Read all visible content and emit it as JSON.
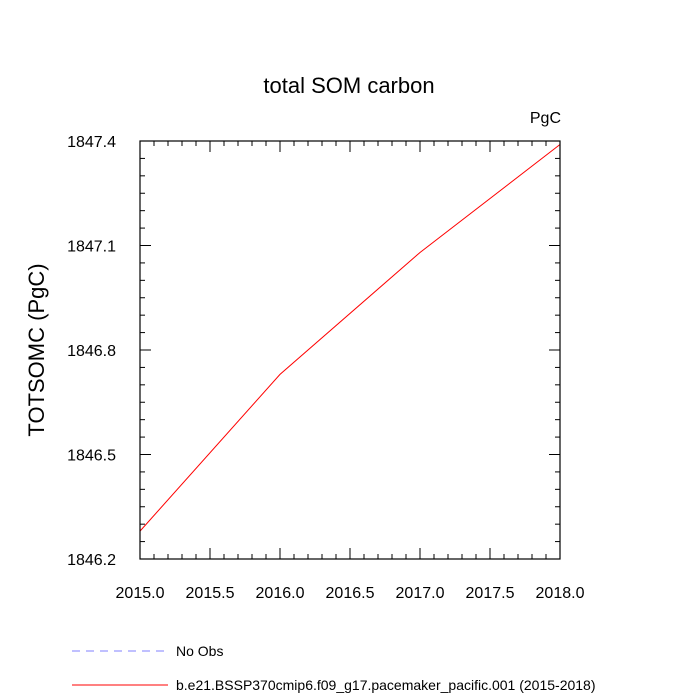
{
  "chart_data": {
    "type": "line",
    "title": "total SOM carbon",
    "units_label": "PgC",
    "xlabel": "",
    "ylabel": "TOTSOMC  (PgC)",
    "xlim": [
      2015.0,
      2018.0
    ],
    "ylim": [
      1846.2,
      1847.4
    ],
    "x_ticks": [
      2015.0,
      2015.5,
      2016.0,
      2016.5,
      2017.0,
      2017.5,
      2018.0
    ],
    "x_tick_labels": [
      "2015.0",
      "2015.5",
      "2016.0",
      "2016.5",
      "2017.0",
      "2017.5",
      "2018.0"
    ],
    "y_ticks": [
      1846.2,
      1846.5,
      1846.8,
      1847.1,
      1847.4
    ],
    "y_tick_labels": [
      "1846.2",
      "1846.5",
      "1846.8",
      "1847.1",
      "1847.4"
    ],
    "grid": false,
    "legend_position": "bottom",
    "series": [
      {
        "name": "b.e21.BSSP370cmip6.f09_g17.pacemaker_pacific.001 (2015-2018)",
        "color": "#ff0000",
        "dash": "solid",
        "x": [
          2015.0,
          2016.0,
          2017.0,
          2018.0
        ],
        "y": [
          1846.28,
          1846.73,
          1847.08,
          1847.39
        ]
      }
    ],
    "legend": [
      {
        "label": "No Obs",
        "color": "#8080ff",
        "dash": "dashed"
      },
      {
        "label": "b.e21.BSSP370cmip6.f09_g17.pacemaker_pacific.001 (2015-2018)",
        "color": "#ff0000",
        "dash": "solid"
      }
    ]
  }
}
